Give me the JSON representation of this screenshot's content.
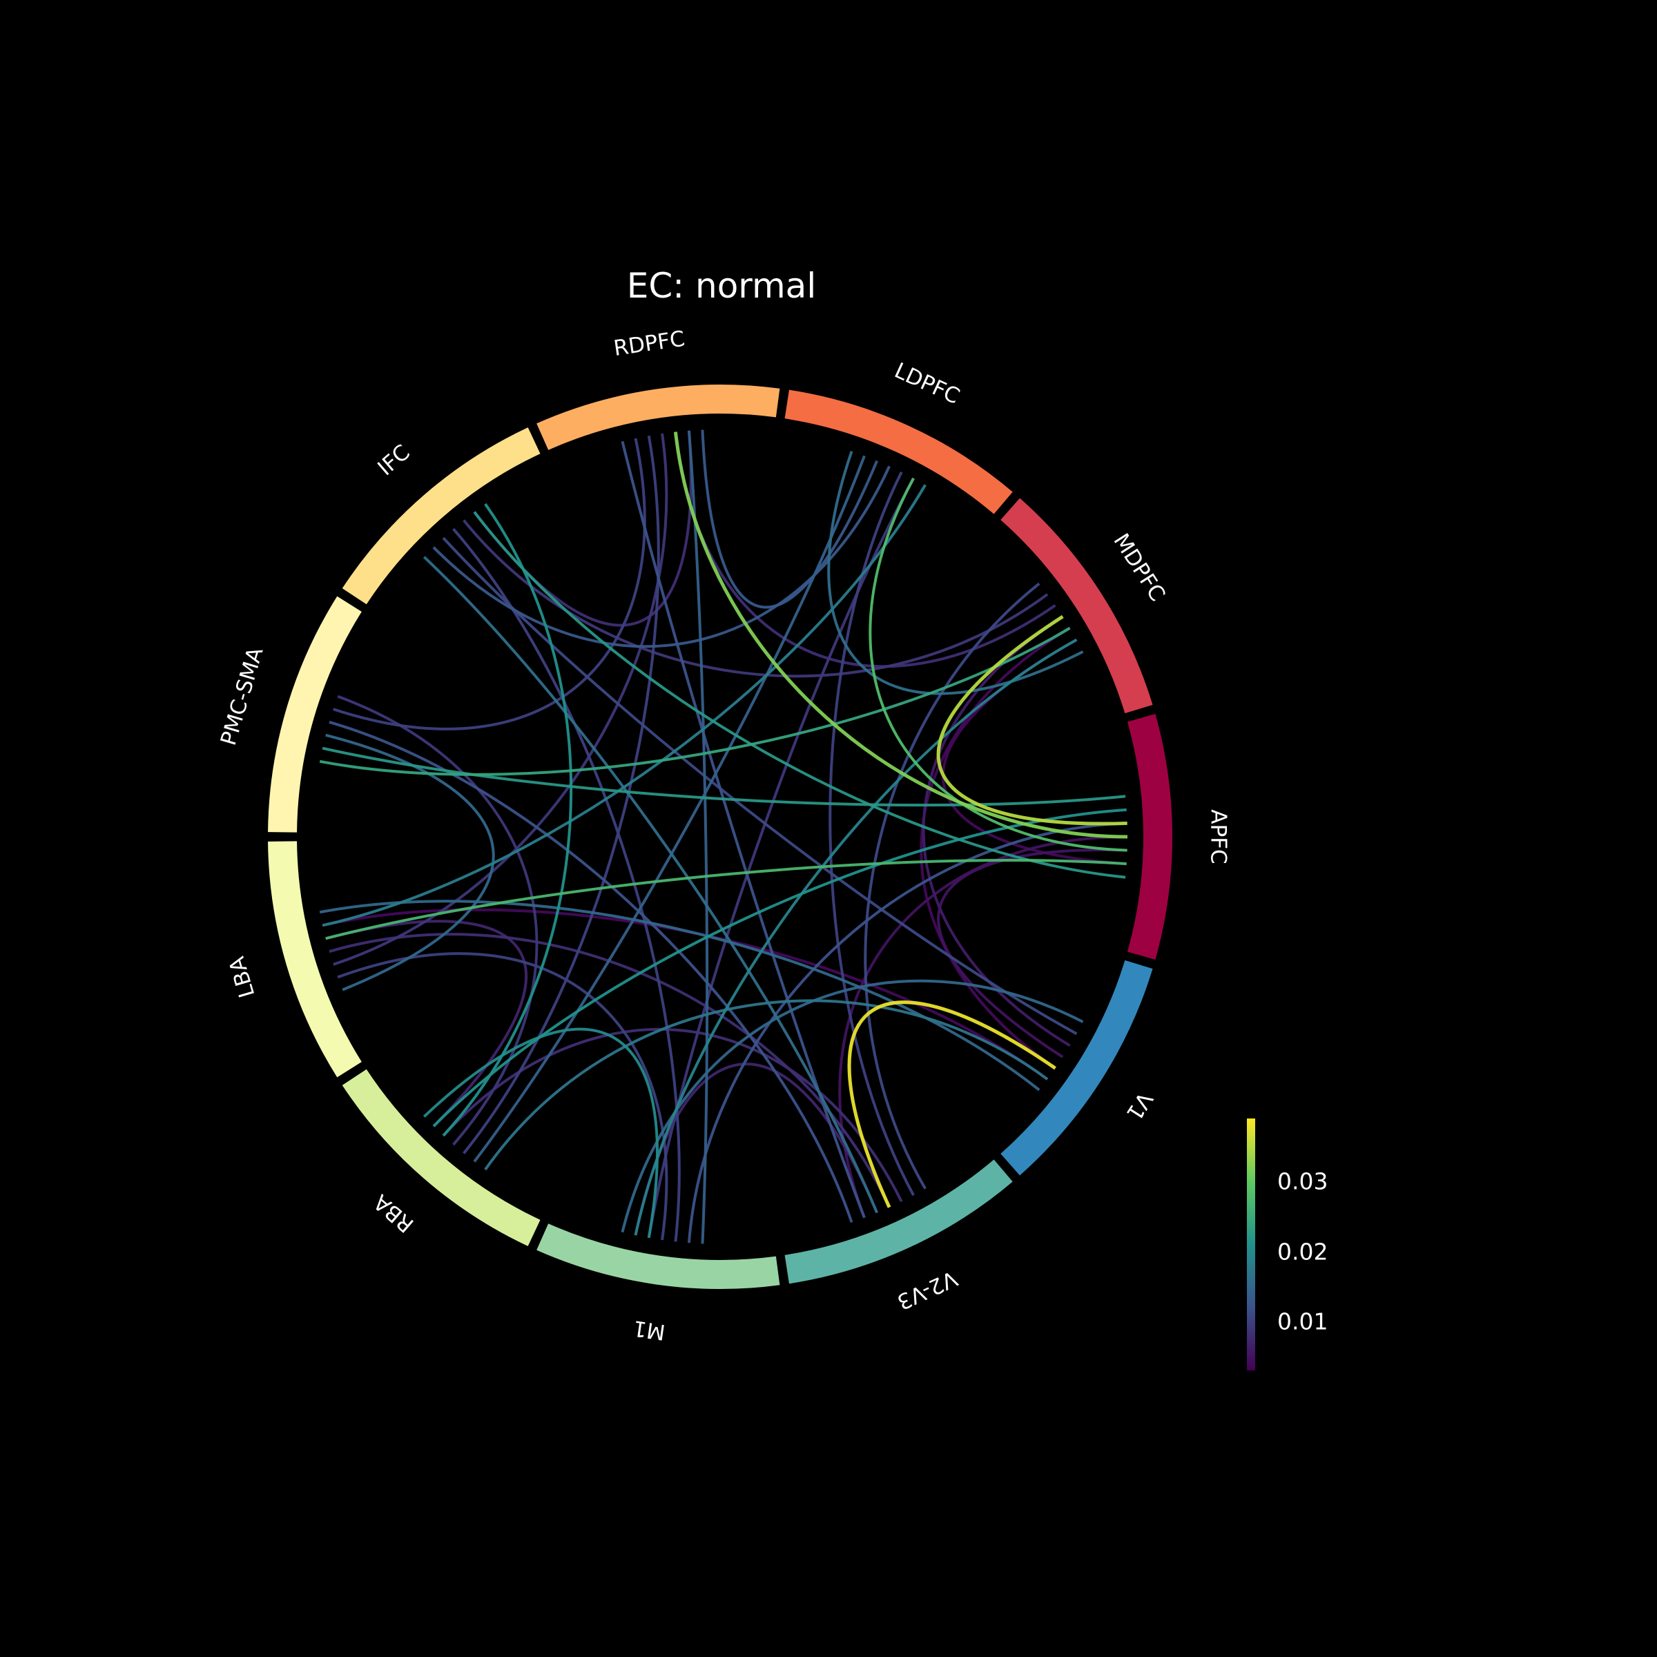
{
  "title": "EC: normal",
  "chart_data": {
    "type": "chord",
    "nodes": [
      {
        "name": "APFC",
        "color": "#9e0142"
      },
      {
        "name": "MDPFC",
        "color": "#d53e4f"
      },
      {
        "name": "LDPFC",
        "color": "#f46d43"
      },
      {
        "name": "RDPFC",
        "color": "#fdae61"
      },
      {
        "name": "IFC",
        "color": "#fee08b"
      },
      {
        "name": "PMC-SMA",
        "color": "#fff5b0"
      },
      {
        "name": "LBA",
        "color": "#f4fbb0"
      },
      {
        "name": "RBA",
        "color": "#d7ef9b"
      },
      {
        "name": "M1",
        "color": "#99d5a4"
      },
      {
        "name": "V2-V3",
        "color": "#5db4a6"
      },
      {
        "name": "V1",
        "color": "#3288bd"
      }
    ],
    "links": [
      {
        "source": "V1",
        "target": "V2-V3",
        "value": 0.038
      },
      {
        "source": "MDPFC",
        "target": "APFC",
        "value": 0.035
      },
      {
        "source": "RDPFC",
        "target": "APFC",
        "value": 0.032
      },
      {
        "source": "LDPFC",
        "target": "APFC",
        "value": 0.028
      },
      {
        "source": "LBA",
        "target": "APFC",
        "value": 0.027
      },
      {
        "source": "PMC-SMA",
        "target": "MDPFC",
        "value": 0.024
      },
      {
        "source": "PMC-SMA",
        "target": "APFC",
        "value": 0.022
      },
      {
        "source": "IFC",
        "target": "APFC",
        "value": 0.022
      },
      {
        "source": "RBA",
        "target": "APFC",
        "value": 0.021
      },
      {
        "source": "IFC",
        "target": "RBA",
        "value": 0.021
      },
      {
        "source": "RBA",
        "target": "M1",
        "value": 0.02
      },
      {
        "source": "M1",
        "target": "MDPFC",
        "value": 0.019
      },
      {
        "source": "LBA",
        "target": "LDPFC",
        "value": 0.018
      },
      {
        "source": "RBA",
        "target": "V1",
        "value": 0.017
      },
      {
        "source": "V2-V3",
        "target": "IFC",
        "value": 0.016
      },
      {
        "source": "LDPFC",
        "target": "MDPFC",
        "value": 0.016
      },
      {
        "source": "PMC-SMA",
        "target": "LBA",
        "value": 0.015
      },
      {
        "source": "M1",
        "target": "V1",
        "value": 0.015
      },
      {
        "source": "LBA",
        "target": "V1",
        "value": 0.015
      },
      {
        "source": "RDPFC",
        "target": "M1",
        "value": 0.014
      },
      {
        "source": "LDPFC",
        "target": "RBA",
        "value": 0.014
      },
      {
        "source": "IFC",
        "target": "LDPFC",
        "value": 0.013
      },
      {
        "source": "RDPFC",
        "target": "LDPFC",
        "value": 0.013
      },
      {
        "source": "PMC-SMA",
        "target": "V2-V3",
        "value": 0.012
      },
      {
        "source": "RDPFC",
        "target": "V2-V3",
        "value": 0.012
      },
      {
        "source": "M1",
        "target": "APFC",
        "value": 0.012
      },
      {
        "source": "V2-V3",
        "target": "MDPFC",
        "value": 0.011
      },
      {
        "source": "IFC",
        "target": "V1",
        "value": 0.011
      },
      {
        "source": "RDPFC",
        "target": "RBA",
        "value": 0.01
      },
      {
        "source": "PMC-SMA",
        "target": "RDPFC",
        "value": 0.01
      },
      {
        "source": "LBA",
        "target": "M1",
        "value": 0.01
      },
      {
        "source": "IFC",
        "target": "M1",
        "value": 0.01
      },
      {
        "source": "LDPFC",
        "target": "V2-V3",
        "value": 0.01
      },
      {
        "source": "PMC-SMA",
        "target": "RBA",
        "value": 0.009
      },
      {
        "source": "RDPFC",
        "target": "LBA",
        "value": 0.009
      },
      {
        "source": "LDPFC",
        "target": "M1",
        "value": 0.009
      },
      {
        "source": "IFC",
        "target": "MDPFC",
        "value": 0.009
      },
      {
        "source": "RDPFC",
        "target": "IFC",
        "value": 0.008
      },
      {
        "source": "LBA",
        "target": "V2-V3",
        "value": 0.008
      },
      {
        "source": "RDPFC",
        "target": "MDPFC",
        "value": 0.008
      },
      {
        "source": "RBA",
        "target": "V2-V3",
        "value": 0.008
      },
      {
        "source": "M1",
        "target": "V2-V3",
        "value": 0.007
      },
      {
        "source": "LBA",
        "target": "RBA",
        "value": 0.007
      },
      {
        "source": "V1",
        "target": "MDPFC",
        "value": 0.006
      },
      {
        "source": "V1",
        "target": "APFC",
        "value": 0.005
      },
      {
        "source": "V2-V3",
        "target": "APFC",
        "value": 0.005
      },
      {
        "source": "LBA",
        "target": "V1",
        "value": 0.004
      },
      {
        "source": "MDPFC",
        "target": "APFC",
        "value": 0.004
      },
      {
        "source": "V1",
        "target": "MDPFC",
        "value": 0.004
      }
    ],
    "colorbar": {
      "colormap": "viridis",
      "vmin": 0.003,
      "vmax": 0.039,
      "ticks": [
        0.01,
        0.02,
        0.03
      ],
      "tick_labels": [
        "0.01",
        "0.02",
        "0.03"
      ]
    }
  }
}
